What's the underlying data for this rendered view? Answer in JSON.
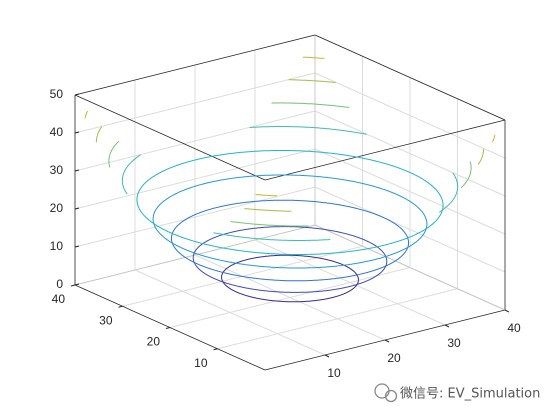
{
  "chart_data": {
    "type": "contour3",
    "levels": [
      5,
      10,
      15,
      20,
      25,
      30,
      35,
      40,
      45,
      50
    ],
    "colors": [
      "#3b2b8a",
      "#3c4cb4",
      "#2f76cf",
      "#2399d2",
      "#22b4c8",
      "#3dbdaa",
      "#78bf72",
      "#a3bd48",
      "#bcbb30",
      "#d2bd28"
    ],
    "xlim": [
      0,
      40
    ],
    "ylim": [
      0,
      40
    ],
    "zlim": [
      0,
      50
    ],
    "xticks": [
      10,
      20,
      30,
      40
    ],
    "yticks": [
      10,
      20,
      30,
      40
    ],
    "zticks": [
      0,
      10,
      20,
      30,
      40,
      50
    ],
    "grid": true,
    "watermark": "微信号: EV_Simulation"
  }
}
